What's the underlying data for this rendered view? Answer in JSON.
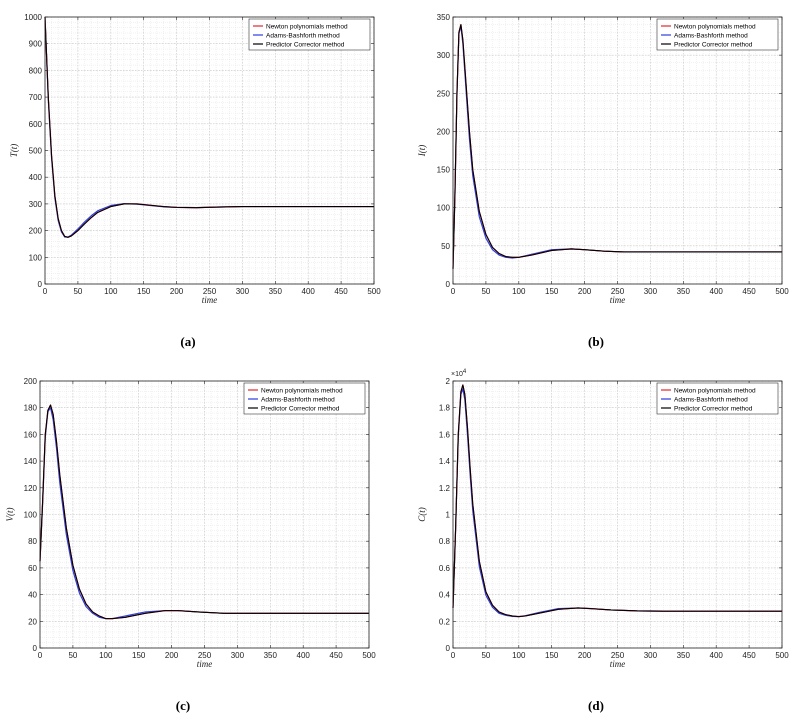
{
  "chart_data": [
    {
      "type": "line",
      "id": "a",
      "caption": "(a)",
      "ylabel": "T(t)",
      "xlabel": "time",
      "xlim": [
        0,
        500
      ],
      "ylim": [
        0,
        1000
      ],
      "xticks": [
        0,
        50,
        100,
        150,
        200,
        250,
        300,
        350,
        400,
        450,
        500
      ],
      "yticks": [
        0,
        100,
        200,
        300,
        400,
        500,
        600,
        700,
        800,
        900,
        1000
      ],
      "ytick_labels": [
        "0",
        "100",
        "200",
        "300",
        "400",
        "500",
        "600",
        "700",
        "800",
        "900",
        "1000"
      ],
      "y_exponent": "",
      "grid": true,
      "legend_position": "top-right",
      "series": [
        {
          "name": "Newton polynomials method",
          "color": "#e3262b",
          "x": [
            0,
            5,
            10,
            15,
            20,
            25,
            30,
            35,
            40,
            50,
            60,
            70,
            80,
            100,
            120,
            140,
            160,
            180,
            200,
            230,
            260,
            300,
            350,
            400,
            450,
            500
          ],
          "y": [
            1000,
            700,
            480,
            330,
            245,
            200,
            178,
            175,
            180,
            200,
            225,
            248,
            268,
            290,
            300,
            300,
            295,
            290,
            287,
            286,
            288,
            290,
            290,
            290,
            290,
            290
          ]
        },
        {
          "name": "Adams-Bashforth method",
          "color": "#2b3de0",
          "x": [
            0,
            5,
            10,
            15,
            20,
            25,
            30,
            35,
            40,
            50,
            60,
            70,
            80,
            100,
            120,
            140,
            160,
            180,
            200,
            230,
            260,
            300,
            350,
            400,
            450,
            500
          ],
          "y": [
            1000,
            690,
            470,
            322,
            238,
            195,
            176,
            176,
            183,
            206,
            232,
            255,
            274,
            294,
            301,
            299,
            294,
            289,
            287,
            286,
            288,
            290,
            290,
            290,
            290,
            290
          ]
        },
        {
          "name": "Predictor Corrector method",
          "color": "#000000",
          "x": [
            0,
            5,
            10,
            15,
            20,
            25,
            30,
            35,
            40,
            50,
            60,
            70,
            80,
            100,
            120,
            140,
            160,
            180,
            200,
            230,
            260,
            300,
            350,
            400,
            450,
            500
          ],
          "y": [
            1000,
            700,
            480,
            330,
            245,
            200,
            178,
            175,
            180,
            200,
            225,
            248,
            268,
            290,
            300,
            300,
            295,
            290,
            287,
            286,
            288,
            290,
            290,
            290,
            290,
            290
          ]
        }
      ]
    },
    {
      "type": "line",
      "id": "b",
      "caption": "(b)",
      "ylabel": "I(t)",
      "xlabel": "time",
      "xlim": [
        0,
        500
      ],
      "ylim": [
        0,
        350
      ],
      "xticks": [
        0,
        50,
        100,
        150,
        200,
        250,
        300,
        350,
        400,
        450,
        500
      ],
      "yticks": [
        0,
        50,
        100,
        150,
        200,
        250,
        300,
        350
      ],
      "ytick_labels": [
        "0",
        "50",
        "100",
        "150",
        "200",
        "250",
        "300",
        "350"
      ],
      "y_exponent": "",
      "grid": true,
      "legend_position": "top-right",
      "series": [
        {
          "name": "Newton polynomials method",
          "color": "#e3262b",
          "x": [
            0,
            3,
            6,
            9,
            12,
            15,
            20,
            25,
            30,
            40,
            50,
            60,
            70,
            80,
            90,
            100,
            120,
            150,
            180,
            200,
            230,
            260,
            300,
            350,
            400,
            450,
            500
          ],
          "y": [
            20,
            120,
            250,
            330,
            340,
            320,
            260,
            200,
            150,
            95,
            65,
            48,
            40,
            36,
            35,
            35,
            38,
            44,
            46,
            45,
            43,
            42,
            42,
            42,
            42,
            42,
            42
          ]
        },
        {
          "name": "Adams-Bashforth method",
          "color": "#2b3de0",
          "x": [
            0,
            3,
            6,
            9,
            12,
            15,
            20,
            25,
            30,
            40,
            50,
            60,
            70,
            80,
            90,
            100,
            120,
            150,
            180,
            200,
            230,
            260,
            300,
            350,
            400,
            450,
            500
          ],
          "y": [
            20,
            118,
            248,
            328,
            338,
            315,
            252,
            190,
            142,
            88,
            60,
            45,
            38,
            35,
            34,
            35,
            39,
            45,
            46,
            45,
            43,
            42,
            42,
            42,
            42,
            42,
            42
          ]
        },
        {
          "name": "Predictor Corrector method",
          "color": "#000000",
          "x": [
            0,
            3,
            6,
            9,
            12,
            15,
            20,
            25,
            30,
            40,
            50,
            60,
            70,
            80,
            90,
            100,
            120,
            150,
            180,
            200,
            230,
            260,
            300,
            350,
            400,
            450,
            500
          ],
          "y": [
            20,
            120,
            250,
            330,
            340,
            320,
            260,
            200,
            150,
            95,
            65,
            48,
            40,
            36,
            35,
            35,
            38,
            44,
            46,
            45,
            43,
            42,
            42,
            42,
            42,
            42,
            42
          ]
        }
      ]
    },
    {
      "type": "line",
      "id": "c",
      "caption": "(c)",
      "ylabel": "V(t)",
      "xlabel": "time",
      "xlim": [
        0,
        500
      ],
      "ylim": [
        0,
        200
      ],
      "xticks": [
        0,
        50,
        100,
        150,
        200,
        250,
        300,
        350,
        400,
        450,
        500
      ],
      "yticks": [
        0,
        20,
        40,
        60,
        80,
        100,
        120,
        140,
        160,
        180,
        200
      ],
      "ytick_labels": [
        "0",
        "20",
        "40",
        "60",
        "80",
        "100",
        "120",
        "140",
        "160",
        "180",
        "200"
      ],
      "y_exponent": "",
      "grid": true,
      "legend_position": "top-right",
      "series": [
        {
          "name": "Newton polynomials method",
          "color": "#e3262b",
          "x": [
            0,
            4,
            8,
            12,
            16,
            20,
            25,
            30,
            40,
            50,
            60,
            70,
            80,
            90,
            100,
            110,
            130,
            160,
            190,
            210,
            240,
            280,
            320,
            360,
            400,
            450,
            500
          ],
          "y": [
            65,
            110,
            160,
            178,
            182,
            175,
            155,
            130,
            90,
            62,
            44,
            33,
            27,
            24,
            22,
            22,
            23,
            26,
            28,
            28,
            27,
            26,
            26,
            26,
            26,
            26,
            26
          ]
        },
        {
          "name": "Adams-Bashforth method",
          "color": "#2b3de0",
          "x": [
            0,
            4,
            8,
            12,
            16,
            20,
            25,
            30,
            40,
            50,
            60,
            70,
            80,
            90,
            100,
            110,
            130,
            160,
            190,
            210,
            240,
            280,
            320,
            360,
            400,
            450,
            500
          ],
          "y": [
            65,
            108,
            158,
            177,
            180,
            171,
            150,
            124,
            85,
            58,
            41,
            31,
            26,
            23,
            22,
            22,
            24,
            27,
            28,
            28,
            27,
            26,
            26,
            26,
            26,
            26,
            26
          ]
        },
        {
          "name": "Predictor Corrector method",
          "color": "#000000",
          "x": [
            0,
            4,
            8,
            12,
            16,
            20,
            25,
            30,
            40,
            50,
            60,
            70,
            80,
            90,
            100,
            110,
            130,
            160,
            190,
            210,
            240,
            280,
            320,
            360,
            400,
            450,
            500
          ],
          "y": [
            65,
            110,
            160,
            178,
            182,
            175,
            155,
            130,
            90,
            62,
            44,
            33,
            27,
            24,
            22,
            22,
            23,
            26,
            28,
            28,
            27,
            26,
            26,
            26,
            26,
            26,
            26
          ]
        }
      ]
    },
    {
      "type": "line",
      "id": "d",
      "caption": "(d)",
      "ylabel": "C(t)",
      "xlabel": "time",
      "xlim": [
        0,
        500
      ],
      "ylim": [
        0,
        20000
      ],
      "xticks": [
        0,
        50,
        100,
        150,
        200,
        250,
        300,
        350,
        400,
        450,
        500
      ],
      "yticks": [
        0,
        2000,
        4000,
        6000,
        8000,
        10000,
        12000,
        14000,
        16000,
        18000,
        20000
      ],
      "ytick_labels": [
        "0",
        "0.2",
        "0.4",
        "0.6",
        "0.8",
        "1",
        "1.2",
        "1.4",
        "1.6",
        "1.8",
        "2"
      ],
      "y_exponent": "×10",
      "y_exponent_power": "4",
      "grid": true,
      "legend_position": "top-right",
      "series": [
        {
          "name": "Newton polynomials method",
          "color": "#e3262b",
          "x": [
            0,
            4,
            8,
            12,
            15,
            18,
            22,
            26,
            30,
            40,
            50,
            60,
            70,
            80,
            90,
            100,
            110,
            130,
            160,
            190,
            210,
            240,
            280,
            320,
            360,
            400,
            450,
            500
          ],
          "y": [
            3000,
            9000,
            16000,
            19200,
            19700,
            19000,
            16500,
            13500,
            10800,
            6500,
            4200,
            3200,
            2700,
            2500,
            2400,
            2350,
            2400,
            2600,
            2900,
            3000,
            2950,
            2850,
            2780,
            2760,
            2760,
            2760,
            2760,
            2760
          ]
        },
        {
          "name": "Adams-Bashforth method",
          "color": "#2b3de0",
          "x": [
            0,
            4,
            8,
            12,
            15,
            18,
            22,
            26,
            30,
            40,
            50,
            60,
            70,
            80,
            90,
            100,
            110,
            130,
            160,
            190,
            210,
            240,
            280,
            320,
            360,
            400,
            450,
            500
          ],
          "y": [
            3000,
            8900,
            15800,
            19000,
            19400,
            18600,
            16000,
            13000,
            10300,
            6100,
            3950,
            3050,
            2600,
            2450,
            2370,
            2350,
            2420,
            2650,
            2950,
            3000,
            2950,
            2850,
            2780,
            2760,
            2760,
            2760,
            2760,
            2760
          ]
        },
        {
          "name": "Predictor Corrector method",
          "color": "#000000",
          "x": [
            0,
            4,
            8,
            12,
            15,
            18,
            22,
            26,
            30,
            40,
            50,
            60,
            70,
            80,
            90,
            100,
            110,
            130,
            160,
            190,
            210,
            240,
            280,
            320,
            360,
            400,
            450,
            500
          ],
          "y": [
            3000,
            9000,
            16000,
            19200,
            19700,
            19000,
            16500,
            13500,
            10800,
            6500,
            4200,
            3200,
            2700,
            2500,
            2400,
            2350,
            2400,
            2600,
            2900,
            3000,
            2950,
            2850,
            2780,
            2760,
            2760,
            2760,
            2760,
            2760
          ]
        }
      ]
    }
  ]
}
